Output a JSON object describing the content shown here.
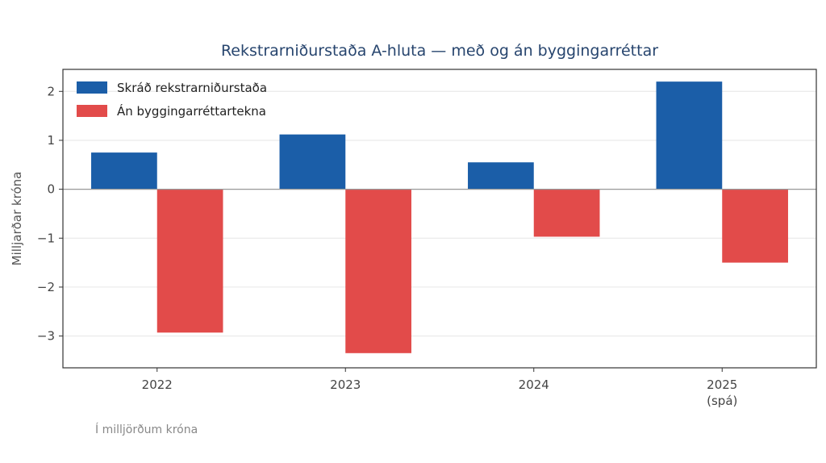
{
  "chart_data": {
    "type": "bar",
    "title": "Rekstrarniðurstaða A-hluta — með og án byggingarréttar",
    "xlabel": "",
    "ylabel": "Milljarðar króna",
    "categories": [
      [
        "2022"
      ],
      [
        "2023"
      ],
      [
        "2024"
      ],
      [
        "2025",
        "(spá)"
      ]
    ],
    "series": [
      {
        "name": "Skráð rekstrarniðurstaða",
        "color": "#1b5ea8",
        "values": [
          0.75,
          1.12,
          0.55,
          2.2
        ]
      },
      {
        "name": "Án byggingarréttartekna",
        "color": "#e24b4a",
        "values": [
          -2.93,
          -3.35,
          -0.97,
          -1.5
        ]
      }
    ],
    "ylim": [
      -3.65,
      2.45
    ],
    "yticks": [
      {
        "value": 2,
        "label": "2"
      },
      {
        "value": 1,
        "label": "1"
      },
      {
        "value": 0,
        "label": "0"
      },
      {
        "value": -1,
        "label": "−1"
      },
      {
        "value": -2,
        "label": "−2"
      },
      {
        "value": -3,
        "label": "−3"
      }
    ],
    "grid": "horizontal",
    "legend_position": "top-left",
    "title_color": "#27456e",
    "note": "Í milljörðum króna"
  }
}
